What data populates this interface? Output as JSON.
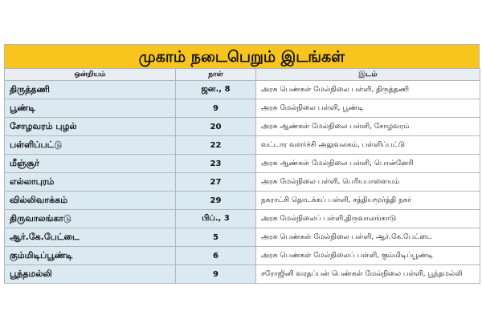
{
  "title": "முகாம் நடைபெறும் இடங்கள்",
  "table": {
    "header": [
      "ஒன்றியம்",
      "நாள்",
      "இடம்"
    ],
    "rows": [
      [
        "திருத்தணி",
        "ஜன., 8",
        "அரசு பெண்கள் மேல்நிலை பள்ளி, திருத்தணி"
      ],
      [
        "பூண்டி",
        "9",
        "அரசு மேல்நிலை பள்ளி, பூண்டி"
      ],
      [
        "சோழவரம் புழல்",
        "20",
        "அரசு ஆண்கள் மேல்நிலை பள்ளி, சோழவரம்"
      ],
      [
        "பள்ளிப்பட்டு",
        "22",
        "வட்டார வளர்ச்சி அலுவலகம், பள்ளிப்பட்டு"
      ],
      [
        "மீஞ்சூர்",
        "23",
        "அரசு ஆண்கள் மேல்நிலை பள்ளி, பொன்னேரி"
      ],
      [
        "எல்லாபுரம்",
        "27",
        "அரசு மேல்நிலை பள்ளி, பெரியபாளையம்"
      ],
      [
        "வில்லிவாக்கம்",
        "29",
        "நகராட்சி தொடக்கப் பள்ளி, சத்தியமூர்த்தி நகர்"
      ],
      [
        "திருவாலங்காடு",
        "பிப்., 3",
        "அரசு மேல்நிலைப் பள்ளி,திருவாலங்காடு"
      ],
      [
        "ஆர்.கே.பேட்டை",
        "5",
        "அரசு பெண்கள் மேல்நிலை பள்ளி, ஆர்.கே.பேட்டை"
      ],
      [
        "கும்மிடிப்பூண்டி",
        "6",
        "அரசு பெண்கள் மேல்நிலைப் பள்ளி, கும்மிடிப்பூண்டி"
      ],
      [
        "பூந்தமல்லி",
        "9",
        "சரோஜினி வரதப்பன் பெண்கள் மேல்நிலை பள்ளி, பூந்தமல்லி"
      ]
    ]
  }
}
